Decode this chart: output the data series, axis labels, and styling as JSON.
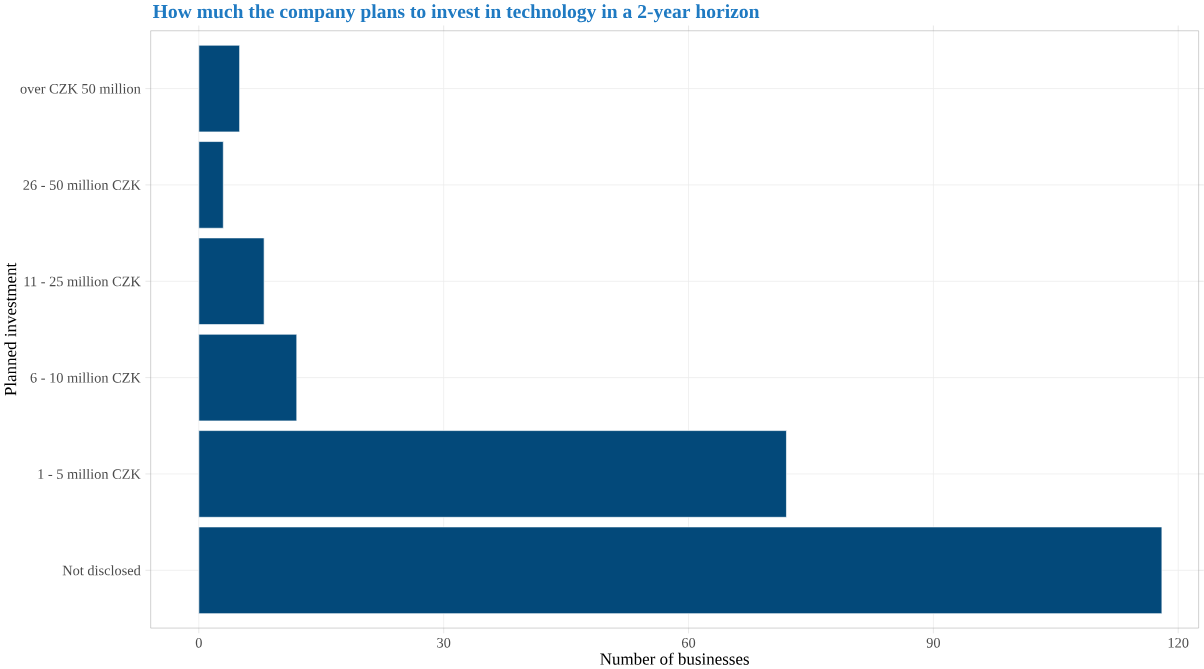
{
  "chart_data": {
    "type": "bar",
    "orientation": "horizontal",
    "title": "How much the company plans to invest in technology in a 2-year horizon",
    "xlabel": "Number of businesses",
    "ylabel": "Planned investment",
    "categories": [
      "over CZK 50 million",
      "26 - 50 million CZK",
      "11 - 25 million CZK",
      "6 - 10 million CZK",
      "1 - 5 million CZK",
      "Not disclosed"
    ],
    "values": [
      5,
      3,
      8,
      12,
      72,
      118
    ],
    "color": "#03497a",
    "xlim": [
      -5.9,
      122.5
    ],
    "xticks": [
      0,
      30,
      60,
      90,
      120
    ],
    "grid": true
  }
}
